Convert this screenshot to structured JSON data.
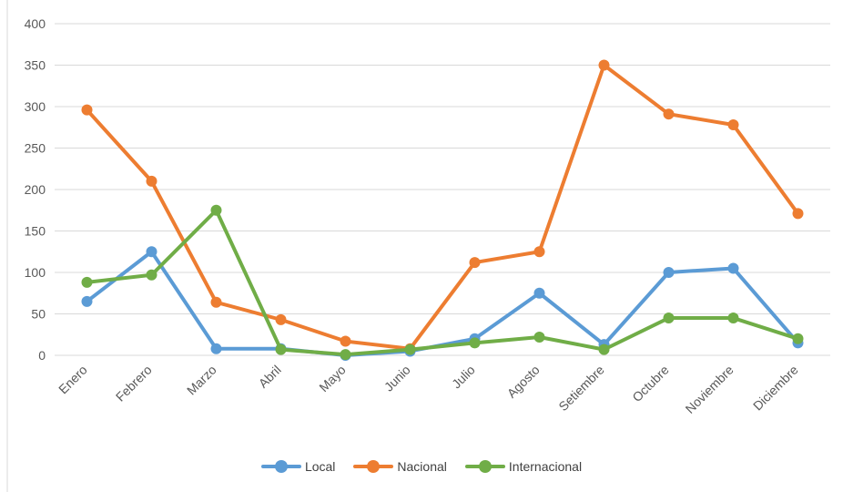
{
  "chart_data": {
    "type": "line",
    "categories": [
      "Enero",
      "Febrero",
      "Marzo",
      "Abril",
      "Mayo",
      "Junio",
      "Julio",
      "Agosto",
      "Setiembre",
      "Octubre",
      "Noviembre",
      "Diciembre"
    ],
    "ylim": [
      0,
      400
    ],
    "yticks": [
      0,
      50,
      100,
      150,
      200,
      250,
      300,
      350,
      400
    ],
    "grid": true,
    "legend_position": "bottom",
    "series": [
      {
        "name": "Local",
        "color": "#5B9BD5",
        "values": [
          65,
          125,
          8,
          8,
          0,
          5,
          20,
          75,
          13,
          100,
          105,
          15
        ]
      },
      {
        "name": "Nacional",
        "color": "#ED7D31",
        "values": [
          296,
          210,
          64,
          43,
          17,
          8,
          112,
          125,
          350,
          291,
          278,
          171
        ]
      },
      {
        "name": "Internacional",
        "color": "#70AD47",
        "values": [
          88,
          97,
          175,
          7,
          1,
          7,
          15,
          22,
          7,
          45,
          45,
          20
        ]
      }
    ]
  }
}
